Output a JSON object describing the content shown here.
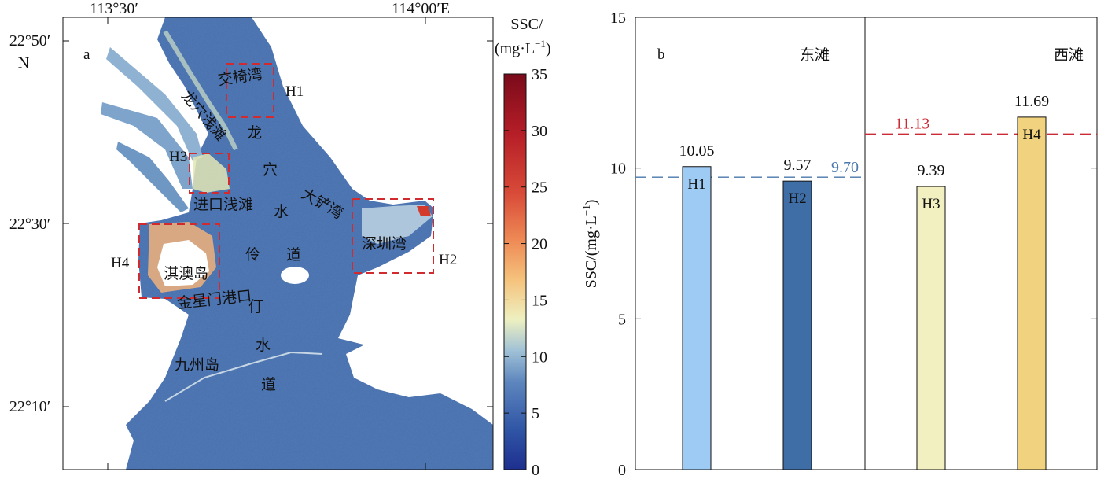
{
  "panel_a": {
    "label": "a",
    "top_ticks": [
      "113°30′",
      "114°00′E"
    ],
    "left_ticks": [
      "22°50′",
      "22°30′",
      "22°10′"
    ],
    "north_label": "N",
    "colorbar": {
      "title_line1": "SSC/",
      "title_line2": "(mg·L",
      "title_exp": "−1",
      "title_close": ")",
      "ticks": [
        "35",
        "30",
        "25",
        "20",
        "15",
        "10",
        "5",
        "0"
      ]
    },
    "boxes": [
      {
        "id": "H1",
        "label": "H1"
      },
      {
        "id": "H2",
        "label": "H2"
      },
      {
        "id": "H3",
        "label": "H3"
      },
      {
        "id": "H4",
        "label": "H4"
      }
    ],
    "place_names": {
      "jiaoyi_bay": "交椅湾",
      "longxue_shoal": "龙穴浅滩",
      "jinkou_shoal": "进口浅滩",
      "dachan_bay": "大铲湾",
      "shenzhen_bay": "深圳湾",
      "qi_ao_island": "淇澳岛",
      "jinxingmen": "金星门港口",
      "jiuzhou_island": "九州岛",
      "longxue_channel": [
        "龙",
        "穴",
        "水",
        "道"
      ],
      "lingding_channel": [
        "伶",
        "仃",
        "水",
        "道"
      ]
    }
  },
  "chart_data": {
    "type": "bar",
    "panel_label": "b",
    "categories": [
      "H1",
      "H2",
      "H3",
      "H4"
    ],
    "values": [
      10.05,
      9.57,
      9.39,
      11.69
    ],
    "value_labels": [
      "10.05",
      "9.57",
      "9.39",
      "11.69"
    ],
    "bar_colors": [
      "#9ecbf3",
      "#3f6ea6",
      "#f2efc0",
      "#f1d27e"
    ],
    "ylim": [
      0,
      15
    ],
    "yticks": [
      "0",
      "5",
      "10",
      "15"
    ],
    "ylabel": "SSC/(mg·L",
    "ylabel_exp": "−1",
    "ylabel_close": ")",
    "groups": [
      {
        "label": "东滩",
        "mean": 9.7,
        "mean_label": "9.70",
        "mean_color": "#4a78ad"
      },
      {
        "label": "西滩",
        "mean": 11.13,
        "mean_label": "11.13",
        "mean_color": "#cc2a35"
      }
    ]
  }
}
